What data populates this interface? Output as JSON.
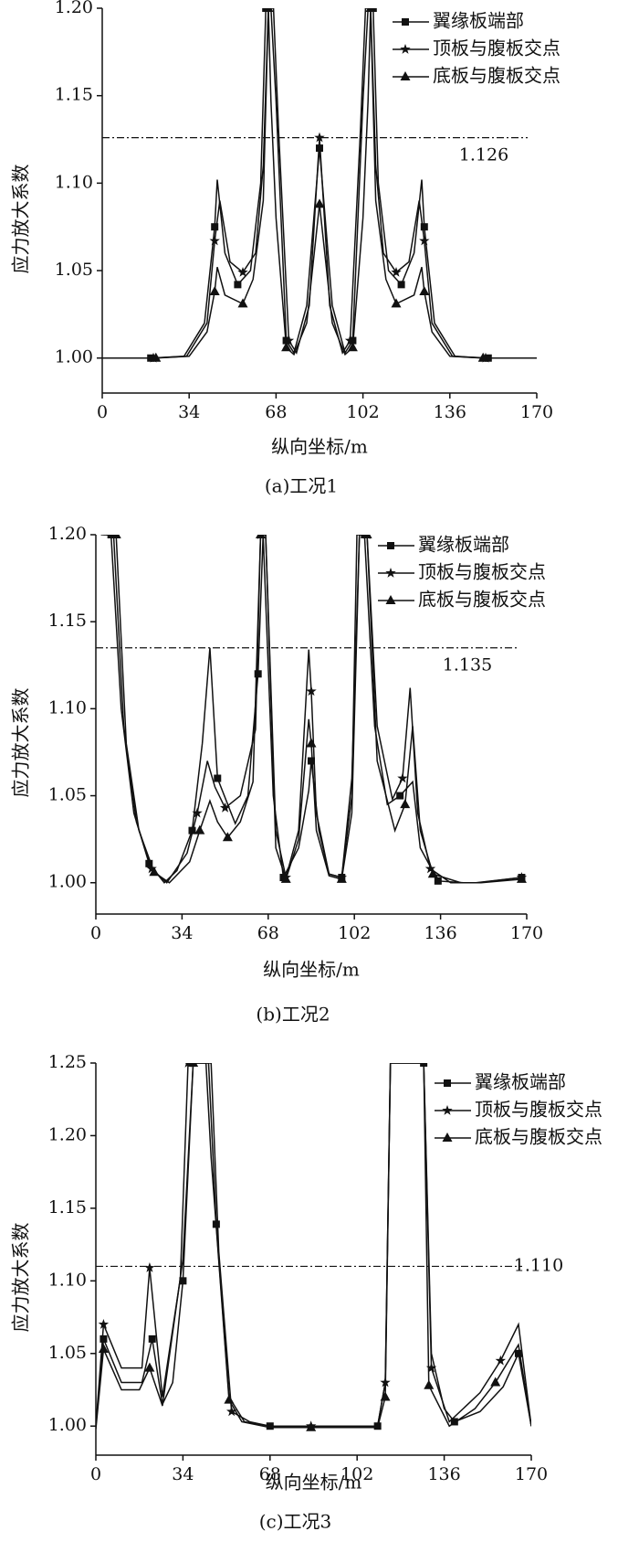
{
  "chart_data": [
    {
      "type": "line",
      "caption": "(a)工况1",
      "xlabel": "纵向坐标/m",
      "ylabel": "应力放大系数",
      "xlim": [
        0,
        170
      ],
      "xticks": [
        0,
        34,
        68,
        102,
        136,
        170
      ],
      "ylim": [
        0.98,
        1.2
      ],
      "yticks": [
        {
          "value": 1,
          "label": "1.00"
        },
        1.05,
        {
          "value": 1.1,
          "label": "1.10"
        },
        1.15,
        {
          "value": 1.2,
          "label": "1.20"
        }
      ],
      "reference_line": 1.126,
      "legend": "upper right",
      "series": [
        {
          "name": "翼缘板端部",
          "color": "#111111",
          "marker": "square",
          "x": [
            0,
            19,
            32,
            40,
            44,
            45,
            48,
            53,
            58,
            62,
            64,
            66,
            68,
            72,
            75,
            80,
            85,
            90,
            95,
            98,
            102,
            104,
            106,
            108,
            112,
            117,
            122,
            125,
            126,
            130,
            138,
            151,
            170
          ],
          "values": [
            1.0,
            1.0,
            1.001,
            1.02,
            1.075,
            1.102,
            1.06,
            1.042,
            1.05,
            1.1,
            1.2,
            1.2,
            1.147,
            1.01,
            1.003,
            1.03,
            1.12,
            1.03,
            1.003,
            1.01,
            1.147,
            1.2,
            1.2,
            1.1,
            1.05,
            1.042,
            1.06,
            1.102,
            1.075,
            1.02,
            1.001,
            1.0,
            1.0
          ]
        },
        {
          "name": "顶板与腹板交点",
          "color": "#111111",
          "marker": "star",
          "x": [
            0,
            20,
            33,
            41,
            44,
            46,
            50,
            55,
            60,
            63,
            65,
            67,
            69,
            73,
            76,
            81,
            85,
            89,
            94,
            97,
            101,
            103,
            105,
            107,
            110,
            115,
            120,
            124,
            126,
            129,
            137,
            150,
            170
          ],
          "values": [
            1.0,
            1.0,
            1.001,
            1.02,
            1.067,
            1.09,
            1.055,
            1.049,
            1.06,
            1.11,
            1.2,
            1.2,
            1.13,
            1.01,
            1.003,
            1.03,
            1.126,
            1.03,
            1.003,
            1.01,
            1.13,
            1.2,
            1.2,
            1.11,
            1.06,
            1.049,
            1.055,
            1.09,
            1.067,
            1.02,
            1.001,
            1.0,
            1.0
          ]
        },
        {
          "name": "底板与腹板交点",
          "color": "#111111",
          "marker": "triangle",
          "x": [
            0,
            21,
            34,
            41,
            44,
            45,
            48,
            55,
            59,
            63,
            65,
            66,
            68,
            72,
            75,
            80,
            85,
            90,
            95,
            98,
            102,
            104,
            105,
            107,
            111,
            115,
            122,
            125,
            126,
            129,
            136,
            149,
            170
          ],
          "values": [
            1.0,
            1.0,
            1.001,
            1.015,
            1.038,
            1.052,
            1.036,
            1.031,
            1.045,
            1.09,
            1.2,
            1.147,
            1.08,
            1.006,
            1.002,
            1.02,
            1.088,
            1.02,
            1.002,
            1.006,
            1.08,
            1.147,
            1.2,
            1.09,
            1.045,
            1.031,
            1.036,
            1.052,
            1.038,
            1.015,
            1.001,
            1.0,
            1.0
          ]
        }
      ]
    },
    {
      "type": "line",
      "caption": "(b)工况2",
      "xlabel": "纵向坐标/m",
      "ylabel": "应力放大系数",
      "xlim": [
        0,
        170
      ],
      "xticks": [
        0,
        34,
        68,
        102,
        136,
        170
      ],
      "ylim": [
        0.982,
        1.2
      ],
      "yticks": [
        {
          "value": 1,
          "label": "1.00"
        },
        1.05,
        {
          "value": 1.1,
          "label": "1.10"
        },
        1.15,
        {
          "value": 1.2,
          "label": "1.20"
        }
      ],
      "reference_line": 1.135,
      "legend": "upper right",
      "series": [
        {
          "name": "翼缘板端部",
          "color": "#111111",
          "marker": "square",
          "x": [
            2,
            6,
            10,
            15,
            21,
            27,
            32,
            38,
            42,
            45,
            48,
            55,
            60,
            64,
            66,
            70,
            74,
            80,
            84,
            85,
            88,
            92,
            97,
            101,
            103,
            106,
            110,
            115,
            120,
            125,
            128,
            135,
            145,
            151,
            168
          ],
          "values": [
            1.2,
            1.2,
            1.1,
            1.04,
            1.011,
            1.0,
            1.007,
            1.03,
            1.08,
            1.135,
            1.06,
            1.034,
            1.05,
            1.12,
            1.2,
            1.05,
            1.003,
            1.02,
            1.053,
            1.07,
            1.03,
            1.005,
            1.003,
            1.05,
            1.2,
            1.2,
            1.09,
            1.045,
            1.05,
            1.058,
            1.02,
            1.001,
            1.0,
            1.0,
            1.003
          ]
        },
        {
          "name": "顶板与腹板交点",
          "color": "#111111",
          "marker": "star",
          "x": [
            3,
            7,
            11,
            16,
            22,
            28,
            36,
            40,
            44,
            47,
            51,
            57,
            63,
            65,
            67,
            71,
            75,
            80,
            84,
            85,
            87,
            92,
            97,
            101,
            104,
            107,
            111,
            117,
            121,
            124,
            127,
            132,
            140,
            150,
            168
          ],
          "values": [
            1.2,
            1.2,
            1.09,
            1.035,
            1.008,
            1.0,
            1.017,
            1.04,
            1.07,
            1.055,
            1.043,
            1.05,
            1.088,
            1.2,
            1.2,
            1.03,
            1.003,
            1.03,
            1.134,
            1.11,
            1.04,
            1.005,
            1.003,
            1.06,
            1.2,
            1.2,
            1.09,
            1.048,
            1.06,
            1.112,
            1.04,
            1.008,
            1.0,
            1.0,
            1.003
          ]
        },
        {
          "name": "底板与腹板交点",
          "color": "#111111",
          "marker": "triangle",
          "x": [
            4,
            8,
            12,
            17,
            23,
            29,
            37,
            41,
            45,
            48,
            52,
            57,
            62,
            65,
            67,
            71,
            75,
            80,
            84,
            85,
            87,
            92,
            97,
            101,
            104,
            107,
            111,
            118,
            122,
            125,
            128,
            133,
            144,
            152,
            168
          ],
          "values": [
            1.2,
            1.2,
            1.08,
            1.03,
            1.006,
            1.0,
            1.012,
            1.03,
            1.047,
            1.035,
            1.026,
            1.035,
            1.058,
            1.2,
            1.2,
            1.02,
            1.002,
            1.025,
            1.094,
            1.08,
            1.03,
            1.004,
            1.002,
            1.04,
            1.2,
            1.2,
            1.07,
            1.03,
            1.045,
            1.09,
            1.03,
            1.005,
            1.0,
            1.0,
            1.002
          ]
        }
      ]
    },
    {
      "type": "line",
      "caption": "(c)工况3",
      "xlabel": "纵向坐标/m",
      "ylabel": "应力放大系数",
      "xlim": [
        0,
        170
      ],
      "xticks": [
        0,
        34,
        68,
        102,
        136,
        170
      ],
      "ylim": [
        0.98,
        1.25
      ],
      "yticks": [
        {
          "value": 1,
          "label": "1.00"
        },
        1.05,
        {
          "value": 1.1,
          "label": "1.10"
        },
        1.15,
        {
          "value": 1.2,
          "label": "1.20"
        },
        1.25
      ],
      "reference_line": 1.11,
      "reference_label": "1.110",
      "legend": "upper right",
      "series": [
        {
          "name": "翼缘板端部",
          "color": "#111111",
          "marker": "square",
          "x": [
            0,
            3,
            10,
            18,
            22,
            26,
            30,
            34,
            38,
            44,
            47,
            52,
            58,
            68,
            84,
            95,
            110,
            113,
            115,
            128,
            131,
            136,
            140,
            150,
            159,
            165,
            170
          ],
          "values": [
            1.0,
            1.06,
            1.03,
            1.03,
            1.06,
            1.015,
            1.03,
            1.1,
            1.25,
            1.25,
            1.139,
            1.02,
            1.003,
            1.0,
            1.0,
            1.0,
            1.0,
            1.03,
            1.25,
            1.25,
            1.05,
            1.012,
            1.003,
            1.01,
            1.027,
            1.05,
            1.0
          ]
        },
        {
          "name": "顶板与腹板交点",
          "color": "#111111",
          "marker": "star",
          "x": [
            0,
            3,
            10,
            18,
            21,
            26,
            33,
            36,
            45,
            48,
            53,
            60,
            68,
            84,
            97,
            110,
            113,
            115,
            128,
            131,
            138,
            150,
            158,
            165,
            170
          ],
          "values": [
            1.0,
            1.07,
            1.04,
            1.04,
            1.109,
            1.02,
            1.102,
            1.25,
            1.25,
            1.12,
            1.01,
            1.003,
            1.0,
            1.0,
            1.0,
            1.0,
            1.03,
            1.25,
            1.25,
            1.04,
            1.003,
            1.023,
            1.045,
            1.07,
            1.0
          ]
        },
        {
          "name": "底板与腹板交点",
          "color": "#111111",
          "marker": "triangle",
          "x": [
            0,
            3,
            10,
            17,
            21,
            26,
            34,
            38,
            43,
            45,
            52,
            57,
            68,
            84,
            95,
            110,
            113,
            115,
            128,
            130,
            138,
            148,
            156,
            165,
            170
          ],
          "values": [
            0.998,
            1.053,
            1.025,
            1.025,
            1.04,
            1.014,
            1.115,
            1.25,
            1.25,
            1.185,
            1.018,
            1.003,
            0.999,
            0.999,
            0.999,
            0.999,
            1.02,
            1.25,
            1.25,
            1.028,
            1.0,
            1.012,
            1.03,
            1.056,
            1.0
          ]
        }
      ]
    }
  ]
}
